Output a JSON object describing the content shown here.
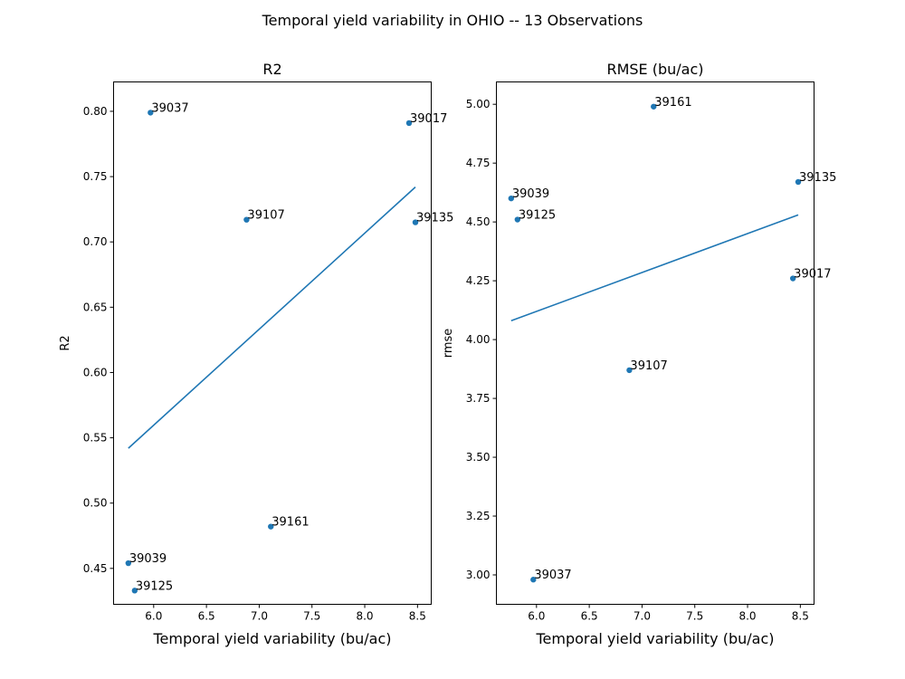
{
  "figure": {
    "suptitle": "Temporal yield variability in OHIO -- 13 Observations"
  },
  "colors": {
    "series": "#1f77b4",
    "axes": "#000000",
    "background": "#ffffff"
  },
  "chart_data": [
    {
      "type": "scatter",
      "title": "R2",
      "xlabel": "Temporal yield variability (bu/ac)",
      "ylabel": "R2",
      "xlim": [
        5.62,
        8.63
      ],
      "ylim": [
        0.4225,
        0.8225
      ],
      "xticks": [
        6.0,
        6.5,
        7.0,
        7.5,
        8.0,
        8.5
      ],
      "xtick_labels": [
        "6.0",
        "6.5",
        "7.0",
        "7.5",
        "8.0",
        "8.5"
      ],
      "yticks": [
        0.45,
        0.5,
        0.55,
        0.6,
        0.65,
        0.7,
        0.75,
        0.8
      ],
      "ytick_labels": [
        "0.45",
        "0.50",
        "0.55",
        "0.60",
        "0.65",
        "0.70",
        "0.75",
        "0.80"
      ],
      "grid": false,
      "points": [
        {
          "label": "39037",
          "x": 5.97,
          "y": 0.799
        },
        {
          "label": "39017",
          "x": 8.42,
          "y": 0.791
        },
        {
          "label": "39107",
          "x": 6.88,
          "y": 0.717
        },
        {
          "label": "39135",
          "x": 8.48,
          "y": 0.715
        },
        {
          "label": "39161",
          "x": 7.11,
          "y": 0.482
        },
        {
          "label": "39039",
          "x": 5.76,
          "y": 0.454
        },
        {
          "label": "39125",
          "x": 5.82,
          "y": 0.433
        }
      ],
      "trendline": {
        "x": [
          5.76,
          8.48
        ],
        "y": [
          0.542,
          0.742
        ]
      }
    },
    {
      "type": "scatter",
      "title": "RMSE (bu/ac)",
      "xlabel": "Temporal yield variability (bu/ac)",
      "ylabel": "rmse",
      "xlim": [
        5.62,
        8.63
      ],
      "ylim": [
        2.875,
        5.095
      ],
      "xticks": [
        6.0,
        6.5,
        7.0,
        7.5,
        8.0,
        8.5
      ],
      "xtick_labels": [
        "6.0",
        "6.5",
        "7.0",
        "7.5",
        "8.0",
        "8.5"
      ],
      "yticks": [
        3.0,
        3.25,
        3.5,
        3.75,
        4.0,
        4.25,
        4.5,
        4.75,
        5.0
      ],
      "ytick_labels": [
        "3.00",
        "3.25",
        "3.50",
        "3.75",
        "4.00",
        "4.25",
        "4.50",
        "4.75",
        "5.00"
      ],
      "grid": false,
      "points": [
        {
          "label": "39161",
          "x": 7.11,
          "y": 4.99
        },
        {
          "label": "39135",
          "x": 8.48,
          "y": 4.67
        },
        {
          "label": "39039",
          "x": 5.76,
          "y": 4.6
        },
        {
          "label": "39125",
          "x": 5.82,
          "y": 4.51
        },
        {
          "label": "39017",
          "x": 8.43,
          "y": 4.26
        },
        {
          "label": "39107",
          "x": 6.88,
          "y": 3.87
        },
        {
          "label": "39037",
          "x": 5.97,
          "y": 2.98
        }
      ],
      "trendline": {
        "x": [
          5.76,
          8.48
        ],
        "y": [
          4.08,
          4.53
        ]
      }
    }
  ]
}
